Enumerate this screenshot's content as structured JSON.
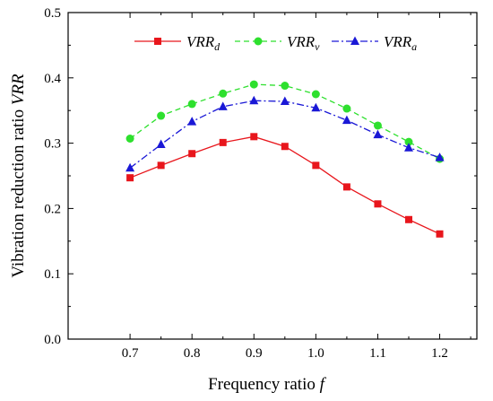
{
  "chart_data": {
    "type": "line",
    "xlabel": "Frequency ratio f",
    "xlabel_parts": {
      "text": "Frequency ratio ",
      "var": "f"
    },
    "ylabel": "Vibration reduction ratio VRR",
    "ylabel_parts": {
      "text": "Vibration reduction ratio ",
      "var": "VRR"
    },
    "x": [
      0.7,
      0.75,
      0.8,
      0.85,
      0.9,
      0.95,
      1.0,
      1.05,
      1.1,
      1.15,
      1.2
    ],
    "xlim": [
      0.6,
      1.26
    ],
    "ylim": [
      0,
      0.5
    ],
    "xticks": [
      "0.7",
      "0.8",
      "0.9",
      "1.0",
      "1.1",
      "1.2"
    ],
    "yticks": [
      "0.0",
      "0.1",
      "0.2",
      "0.3",
      "0.4",
      "0.5"
    ],
    "grid": false,
    "legend_position": "top",
    "series": [
      {
        "name": "VRRd",
        "label_base": "VRR",
        "label_sub": "d",
        "color": "#e8161c",
        "line_style": "solid",
        "marker": "square",
        "values": [
          0.247,
          0.266,
          0.284,
          0.301,
          0.31,
          0.295,
          0.266,
          0.233,
          0.207,
          0.183,
          0.161
        ]
      },
      {
        "name": "VRRv",
        "label_base": "VRR",
        "label_sub": "v",
        "color": "#2ee02e",
        "line_style": "dashed",
        "marker": "circle",
        "values": [
          0.307,
          0.342,
          0.36,
          0.376,
          0.39,
          0.388,
          0.375,
          0.353,
          0.327,
          0.302,
          0.276
        ]
      },
      {
        "name": "VRRa",
        "label_base": "VRR",
        "label_sub": "a",
        "color": "#1a18d6",
        "line_style": "dash-dot",
        "marker": "triangle",
        "values": [
          0.262,
          0.298,
          0.333,
          0.356,
          0.365,
          0.364,
          0.354,
          0.335,
          0.313,
          0.293,
          0.278
        ]
      }
    ]
  }
}
